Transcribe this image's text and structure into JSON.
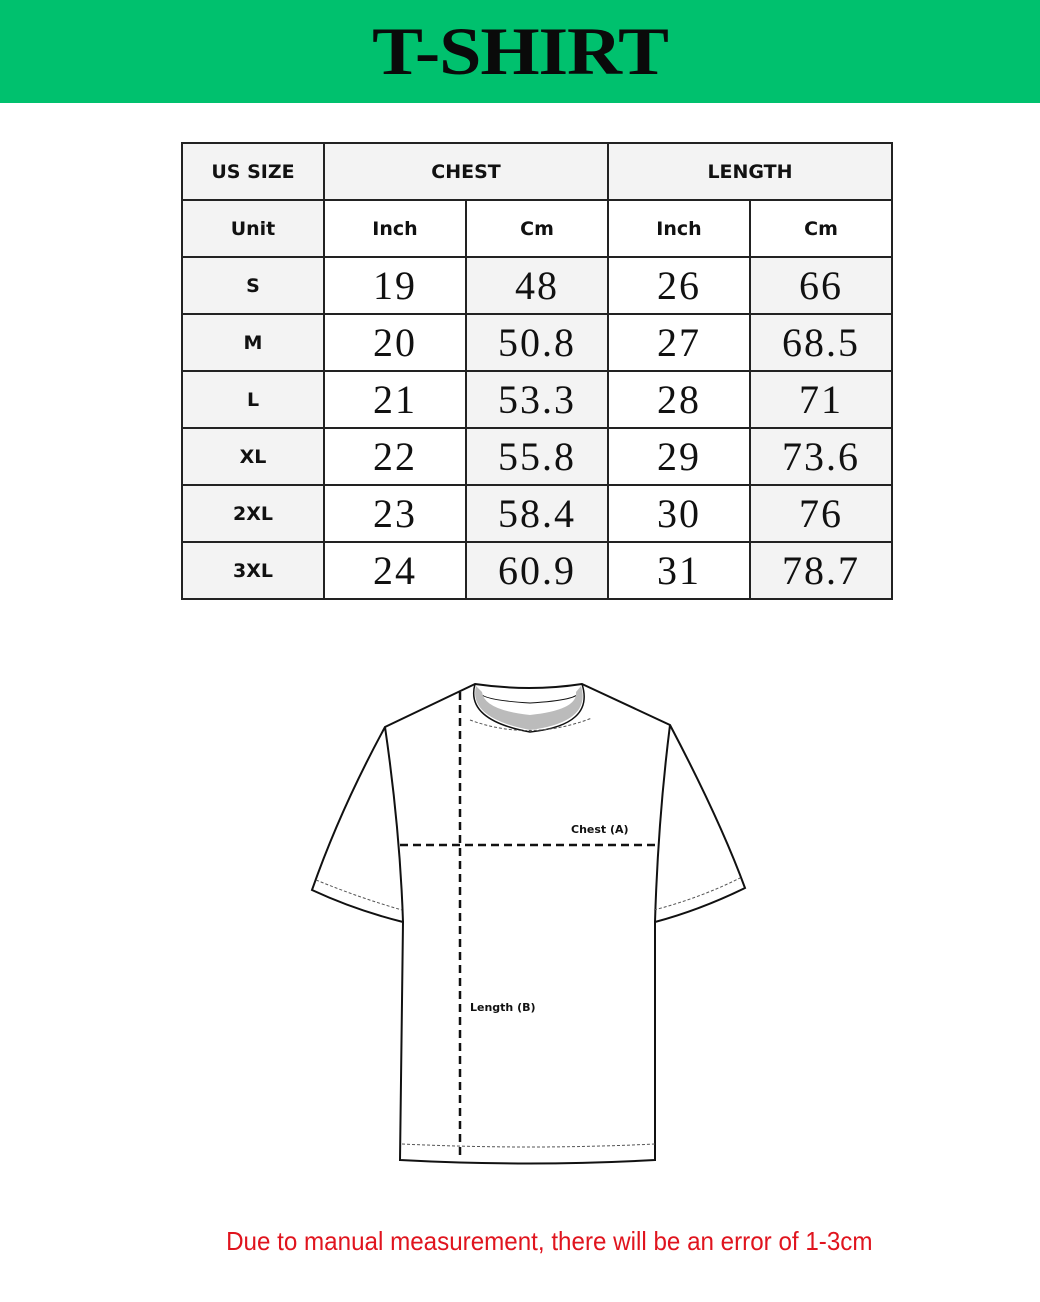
{
  "title": "T-SHIRT",
  "colors": {
    "banner": "#00c16e",
    "note": "#e0141e"
  },
  "table": {
    "headers": {
      "size": "US SIZE",
      "chest": "CHEST",
      "length": "LENGTH"
    },
    "unit_row": {
      "label": "Unit",
      "units": [
        "Inch",
        "Cm",
        "Inch",
        "Cm"
      ]
    },
    "rows": [
      {
        "size": "S",
        "chest_in": "19",
        "chest_cm": "48",
        "length_in": "26",
        "length_cm": "66"
      },
      {
        "size": "M",
        "chest_in": "20",
        "chest_cm": "50.8",
        "length_in": "27",
        "length_cm": "68.5"
      },
      {
        "size": "L",
        "chest_in": "21",
        "chest_cm": "53.3",
        "length_in": "28",
        "length_cm": "71"
      },
      {
        "size": "XL",
        "chest_in": "22",
        "chest_cm": "55.8",
        "length_in": "29",
        "length_cm": "73.6"
      },
      {
        "size": "2XL",
        "chest_in": "23",
        "chest_cm": "58.4",
        "length_in": "30",
        "length_cm": "76"
      },
      {
        "size": "3XL",
        "chest_in": "24",
        "chest_cm": "60.9",
        "length_in": "31",
        "length_cm": "78.7"
      }
    ]
  },
  "diagram": {
    "chest_label": "Chest (A)",
    "length_label": "Length (B)"
  },
  "note": "Due to manual measurement, there will be an error of 1-3cm"
}
